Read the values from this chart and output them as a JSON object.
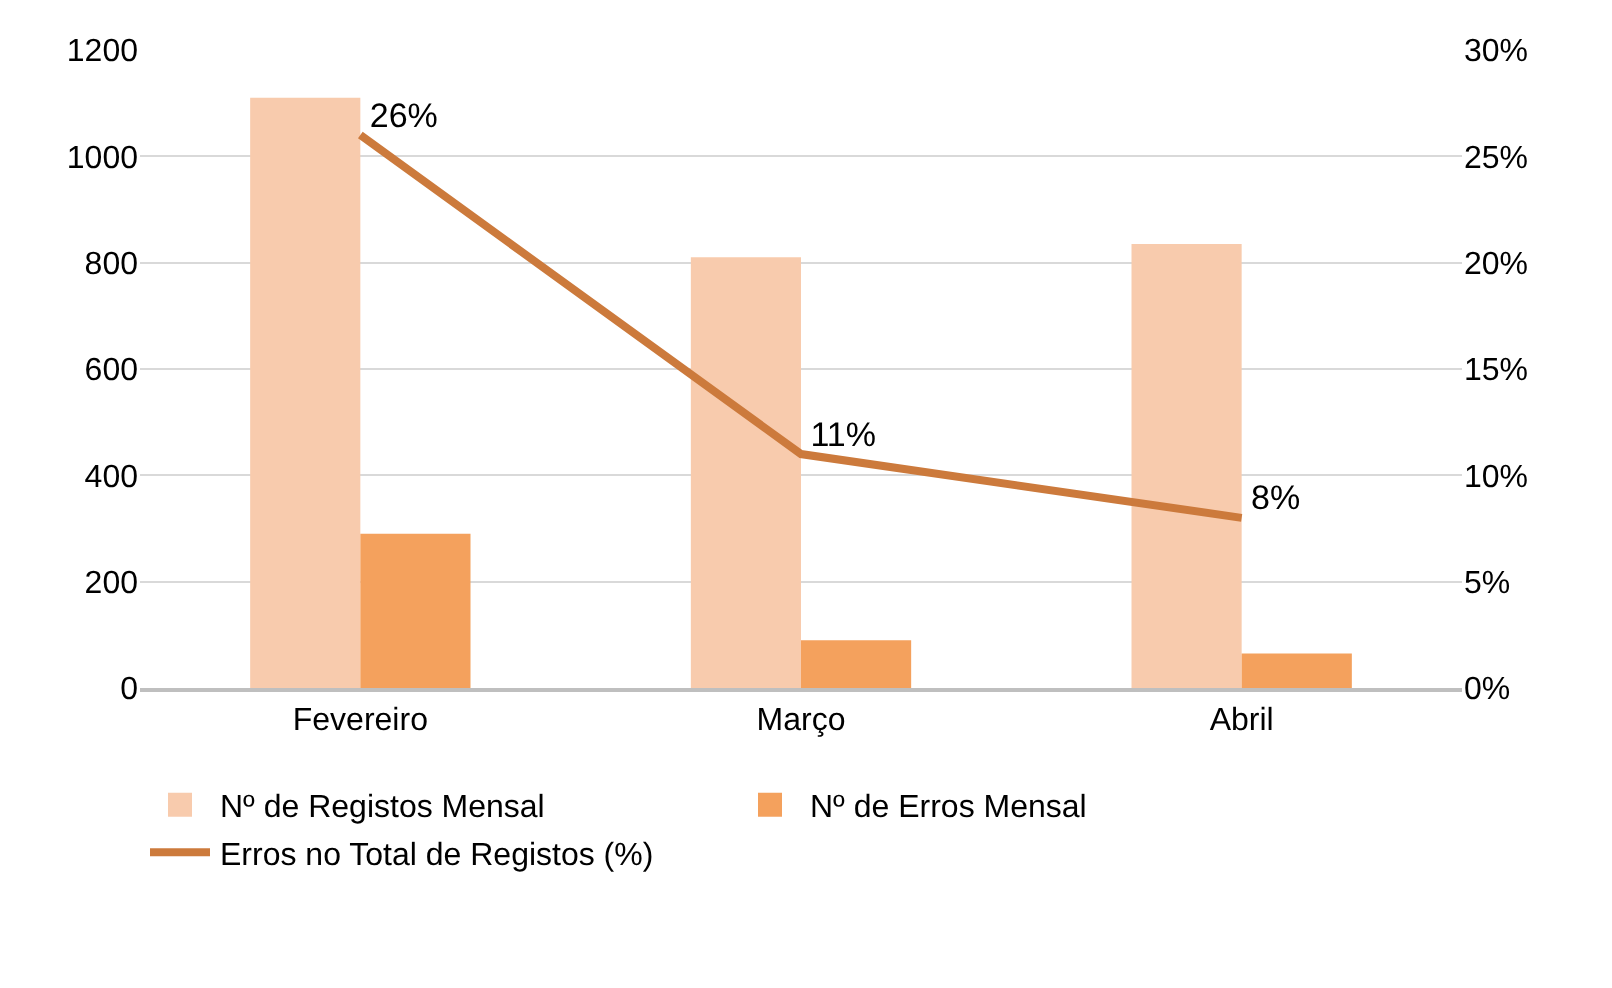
{
  "chart_data": {
    "type": "bar",
    "categories": [
      "Fevereiro",
      "Março",
      "Abril"
    ],
    "series": [
      {
        "name": "Nº de Registos Mensal",
        "color": "#f8cbad",
        "values": [
          1110,
          810,
          835
        ]
      },
      {
        "name": "Nº de Erros Mensal",
        "color": "#f4a15d",
        "values": [
          290,
          90,
          65
        ]
      },
      {
        "name": "Erros no Total de Registos (%)",
        "type": "line",
        "axis": "y2",
        "color": "#cc7a3c",
        "values": [
          26,
          11,
          8
        ],
        "value_labels": [
          "26%",
          "11%",
          "8%"
        ]
      }
    ],
    "ylim": [
      0,
      1200
    ],
    "yticks": [
      0,
      200,
      400,
      600,
      800,
      1000,
      1200
    ],
    "y2lim": [
      0,
      30
    ],
    "y2ticks": [
      {
        "value": 0,
        "label": "0%"
      },
      {
        "value": 5,
        "label": "5%"
      },
      {
        "value": 10,
        "label": "10%"
      },
      {
        "value": 15,
        "label": "15%"
      },
      {
        "value": 20,
        "label": "20%"
      },
      {
        "value": 25,
        "label": "25%"
      },
      {
        "value": 30,
        "label": "30%"
      }
    ],
    "grid": "y",
    "legend": "bottom",
    "marker": "none",
    "line_style": "solid"
  }
}
